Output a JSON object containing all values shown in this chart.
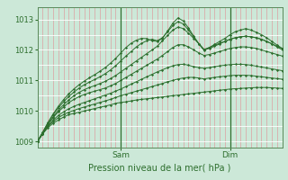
{
  "xlabel": "Pression niveau de la mer( hPa )",
  "bg_color": "#cce8d8",
  "plot_bg_color": "#cce8d8",
  "vgrid_color": "#dda0a0",
  "hgrid_color": "#ffffff",
  "line_color": "#2d6e2d",
  "ylim": [
    1008.8,
    1013.4
  ],
  "yticks": [
    1009,
    1010,
    1011,
    1012,
    1013
  ],
  "xlim": [
    0,
    47
  ],
  "sam_x": 16,
  "dim_x": 37,
  "series": [
    [
      1009.0,
      1009.25,
      1009.45,
      1009.6,
      1009.7,
      1009.8,
      1009.88,
      1009.92,
      1009.96,
      1010.0,
      1010.04,
      1010.08,
      1010.12,
      1010.16,
      1010.2,
      1010.25,
      1010.28,
      1010.3,
      1010.33,
      1010.36,
      1010.38,
      1010.4,
      1010.42,
      1010.44,
      1010.46,
      1010.48,
      1010.5,
      1010.52,
      1010.54,
      1010.56,
      1010.58,
      1010.6,
      1010.62,
      1010.64,
      1010.66,
      1010.68,
      1010.7,
      1010.72,
      1010.73,
      1010.74,
      1010.75,
      1010.76,
      1010.77,
      1010.77,
      1010.77,
      1010.76,
      1010.75,
      1010.74
    ],
    [
      1009.0,
      1009.25,
      1009.5,
      1009.65,
      1009.78,
      1009.88,
      1009.96,
      1010.02,
      1010.08,
      1010.13,
      1010.18,
      1010.23,
      1010.28,
      1010.33,
      1010.38,
      1010.44,
      1010.5,
      1010.55,
      1010.6,
      1010.65,
      1010.7,
      1010.75,
      1010.8,
      1010.85,
      1010.9,
      1010.96,
      1011.0,
      1011.05,
      1011.08,
      1011.1,
      1011.1,
      1011.08,
      1011.05,
      1011.08,
      1011.1,
      1011.12,
      1011.14,
      1011.16,
      1011.17,
      1011.17,
      1011.17,
      1011.16,
      1011.14,
      1011.12,
      1011.1,
      1011.08,
      1011.06,
      1011.04
    ],
    [
      1009.0,
      1009.25,
      1009.5,
      1009.7,
      1009.85,
      1009.97,
      1010.07,
      1010.15,
      1010.22,
      1010.28,
      1010.34,
      1010.4,
      1010.46,
      1010.52,
      1010.58,
      1010.65,
      1010.72,
      1010.8,
      1010.88,
      1010.96,
      1011.04,
      1011.12,
      1011.2,
      1011.28,
      1011.35,
      1011.42,
      1011.48,
      1011.52,
      1011.53,
      1011.5,
      1011.45,
      1011.42,
      1011.4,
      1011.42,
      1011.45,
      1011.48,
      1011.5,
      1011.52,
      1011.53,
      1011.53,
      1011.52,
      1011.5,
      1011.47,
      1011.44,
      1011.41,
      1011.38,
      1011.35,
      1011.32
    ],
    [
      1009.0,
      1009.28,
      1009.55,
      1009.78,
      1009.97,
      1010.13,
      1010.27,
      1010.38,
      1010.47,
      1010.54,
      1010.6,
      1010.65,
      1010.7,
      1010.75,
      1010.82,
      1010.9,
      1011.0,
      1011.1,
      1011.2,
      1011.3,
      1011.4,
      1011.5,
      1011.6,
      1011.7,
      1011.82,
      1011.95,
      1012.08,
      1012.17,
      1012.17,
      1012.1,
      1012.0,
      1011.9,
      1011.82,
      1011.85,
      1011.9,
      1011.95,
      1012.0,
      1012.05,
      1012.08,
      1012.1,
      1012.1,
      1012.08,
      1012.05,
      1012.0,
      1011.95,
      1011.9,
      1011.85,
      1011.8
    ],
    [
      1009.0,
      1009.28,
      1009.56,
      1009.8,
      1010.02,
      1010.2,
      1010.36,
      1010.5,
      1010.61,
      1010.7,
      1010.77,
      1010.83,
      1010.9,
      1010.97,
      1011.06,
      1011.16,
      1011.28,
      1011.4,
      1011.52,
      1011.64,
      1011.76,
      1011.88,
      1012.0,
      1012.12,
      1012.3,
      1012.48,
      1012.65,
      1012.75,
      1012.7,
      1012.55,
      1012.38,
      1012.2,
      1012.02,
      1012.08,
      1012.15,
      1012.22,
      1012.28,
      1012.35,
      1012.4,
      1012.43,
      1012.45,
      1012.43,
      1012.4,
      1012.35,
      1012.28,
      1012.2,
      1012.12,
      1012.05
    ],
    [
      1009.0,
      1009.3,
      1009.6,
      1009.87,
      1010.1,
      1010.3,
      1010.47,
      1010.62,
      1010.75,
      1010.86,
      1010.95,
      1011.03,
      1011.12,
      1011.22,
      1011.34,
      1011.48,
      1011.64,
      1011.8,
      1011.95,
      1012.1,
      1012.22,
      1012.3,
      1012.35,
      1012.3,
      1012.4,
      1012.6,
      1012.8,
      1012.93,
      1012.85,
      1012.65,
      1012.42,
      1012.2,
      1012.0,
      1012.05,
      1012.12,
      1012.2,
      1012.28,
      1012.35,
      1012.4,
      1012.43,
      1012.45,
      1012.43,
      1012.4,
      1012.35,
      1012.28,
      1012.2,
      1012.1,
      1012.0
    ],
    [
      1009.0,
      1009.3,
      1009.62,
      1009.9,
      1010.15,
      1010.37,
      1010.56,
      1010.72,
      1010.86,
      1010.98,
      1011.09,
      1011.19,
      1011.3,
      1011.42,
      1011.56,
      1011.72,
      1011.9,
      1012.08,
      1012.22,
      1012.32,
      1012.38,
      1012.37,
      1012.3,
      1012.28,
      1012.38,
      1012.62,
      1012.88,
      1013.05,
      1012.95,
      1012.72,
      1012.45,
      1012.2,
      1011.98,
      1012.08,
      1012.18,
      1012.28,
      1012.38,
      1012.5,
      1012.6,
      1012.65,
      1012.7,
      1012.65,
      1012.58,
      1012.5,
      1012.4,
      1012.28,
      1012.16,
      1012.05
    ]
  ]
}
